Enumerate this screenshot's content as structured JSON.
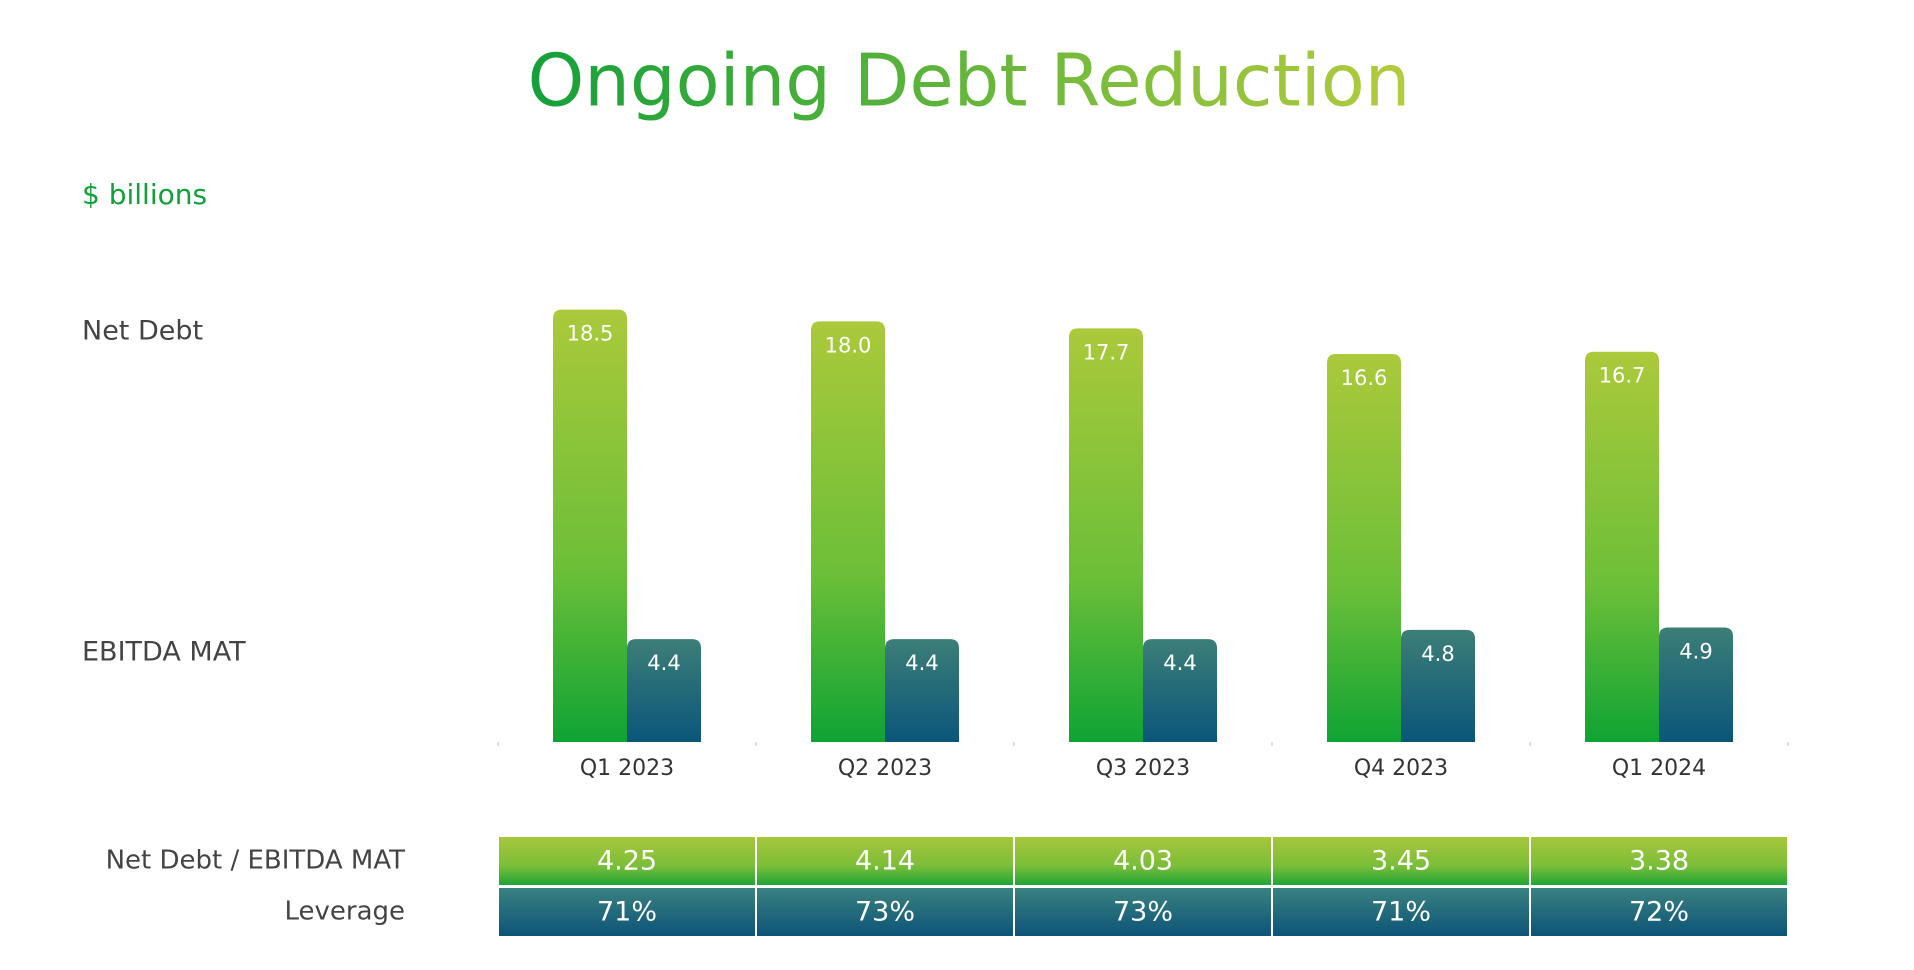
{
  "chart_data": {
    "type": "bar",
    "title": "Ongoing Debt Reduction",
    "subtitle": "$ billions",
    "categories": [
      "Q1 2023",
      "Q2 2023",
      "Q3 2023",
      "Q4 2023",
      "Q1 2024"
    ],
    "series": [
      {
        "name": "Net Debt",
        "color": "#7cc13a",
        "values": [
          18.5,
          18.0,
          17.7,
          16.6,
          16.7
        ],
        "value_labels": [
          "18.5",
          "18.0",
          "17.7",
          "16.6",
          "16.7"
        ]
      },
      {
        "name": "EBITDA MAT",
        "color": "#1f6a7a",
        "values": [
          4.4,
          4.4,
          4.4,
          4.8,
          4.9
        ],
        "value_labels": [
          "4.4",
          "4.4",
          "4.4",
          "4.8",
          "4.9"
        ]
      }
    ],
    "table": {
      "rows": [
        {
          "name": "Net Debt / EBITDA MAT",
          "values": [
            4.25,
            4.14,
            4.03,
            3.45,
            3.38
          ]
        },
        {
          "name": "Leverage",
          "values": [
            71,
            73,
            73,
            71,
            72
          ],
          "value_labels": [
            "71%",
            "73%",
            "73%",
            "71%",
            "72%"
          ]
        }
      ]
    }
  }
}
